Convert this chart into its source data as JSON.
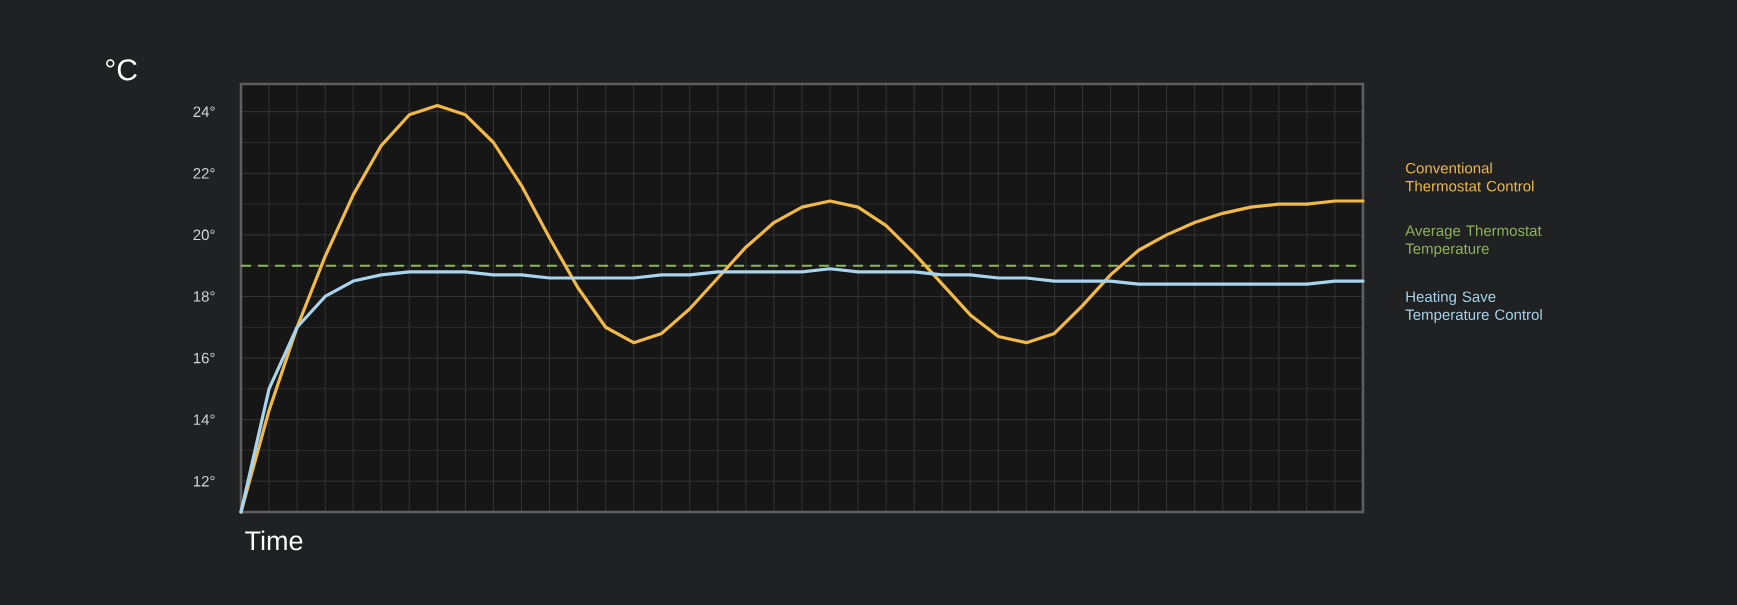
{
  "chart_data": {
    "type": "line",
    "xlabel": "Time",
    "ylabel": "°C",
    "categories": [
      null,
      null,
      null,
      null,
      null,
      null,
      null,
      null,
      null,
      null,
      null,
      null,
      null,
      null,
      null,
      null,
      null,
      null,
      null,
      null,
      null,
      null,
      null,
      null,
      null,
      null,
      null,
      null,
      null,
      null,
      null,
      null,
      null,
      null,
      null,
      null,
      null,
      null,
      null,
      null,
      null
    ],
    "series": [
      {
        "name": "Conventional Thermostat Control",
        "color": "#f0b94a",
        "values": [
          11.0,
          14.3,
          17.0,
          19.3,
          21.3,
          22.9,
          23.9,
          24.2,
          23.9,
          23.0,
          21.6,
          19.9,
          18.3,
          17.0,
          16.5,
          16.8,
          17.6,
          18.6,
          19.6,
          20.4,
          20.9,
          21.1,
          20.9,
          20.3,
          19.4,
          18.4,
          17.4,
          16.7,
          16.5,
          16.8,
          17.7,
          18.7,
          19.5,
          20.0,
          20.4,
          20.7,
          20.9,
          21.0,
          21.0,
          21.1,
          21.1
        ]
      },
      {
        "name": "Heating Save Temperature Control",
        "color": "#a8d4ee",
        "values": [
          11.0,
          15.0,
          17.0,
          18.0,
          18.5,
          18.7,
          18.8,
          18.8,
          18.8,
          18.7,
          18.7,
          18.6,
          18.6,
          18.6,
          18.6,
          18.7,
          18.7,
          18.8,
          18.8,
          18.8,
          18.8,
          18.9,
          18.8,
          18.8,
          18.8,
          18.7,
          18.7,
          18.6,
          18.6,
          18.5,
          18.5,
          18.5,
          18.4,
          18.4,
          18.4,
          18.4,
          18.4,
          18.4,
          18.4,
          18.5,
          18.5
        ]
      }
    ],
    "ref_lines": [
      {
        "axis": "y",
        "value": 19,
        "label": "Average Thermostat Temperature",
        "color": "#8fb45a",
        "line_style": "dashed"
      }
    ],
    "ylim": [
      11,
      24.9
    ],
    "yticks": [
      {
        "value": 12,
        "label": "12°"
      },
      {
        "value": 14,
        "label": "14°"
      },
      {
        "value": 16,
        "label": "16°"
      },
      {
        "value": 18,
        "label": "18°"
      },
      {
        "value": 20,
        "label": "20°"
      },
      {
        "value": 22,
        "label": "22°"
      },
      {
        "value": 24,
        "label": "24°"
      }
    ],
    "grid": true,
    "tick_labels": "y"
  }
}
